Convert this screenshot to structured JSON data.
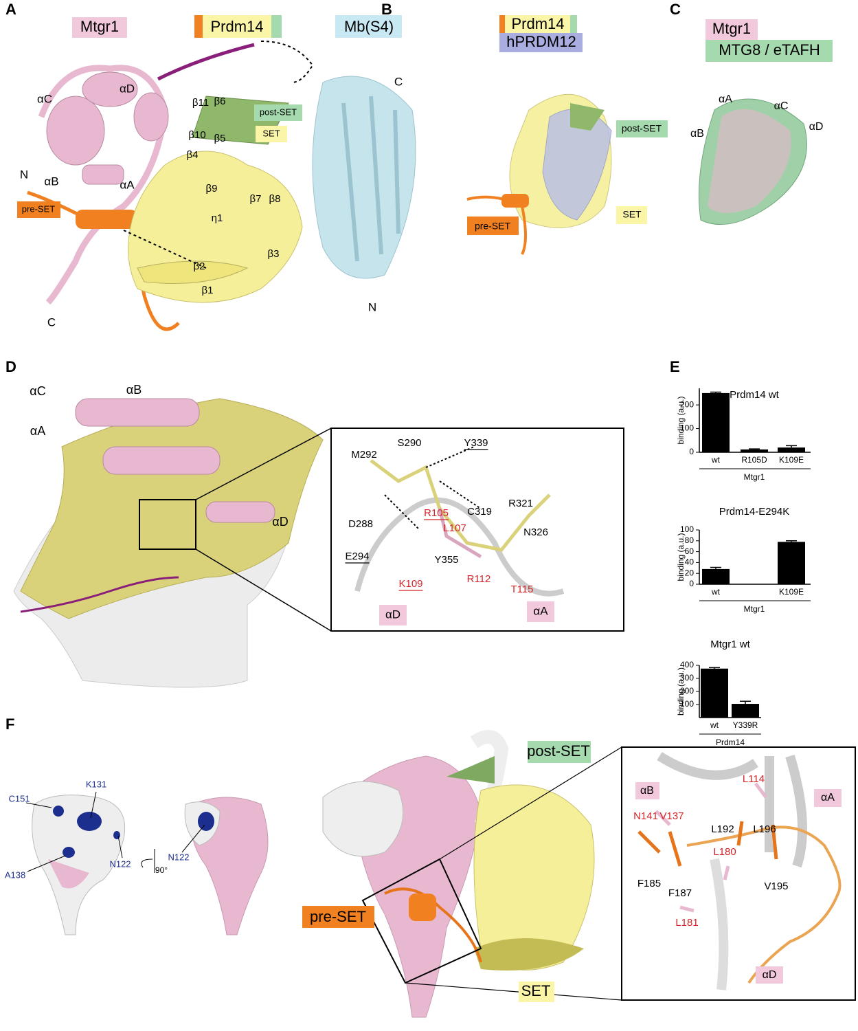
{
  "panel_a": {
    "label": "A",
    "mtgr1": "Mtgr1",
    "prdm14": "Prdm14",
    "mb": "Mb(S4)",
    "helices": [
      "αC",
      "αD",
      "αB",
      "αA"
    ],
    "mtgr1_n": "N",
    "mtgr1_c": "C",
    "pre_set": "pre-SET",
    "post_set": "post-SET",
    "set": "SET",
    "strands": [
      "β11",
      "β6",
      "β10",
      "β5",
      "β4",
      "β9",
      "β7",
      "β8",
      "η1",
      "β2",
      "β1",
      "β3"
    ],
    "mb_c": "C",
    "mb_n": "N"
  },
  "panel_b": {
    "label": "B",
    "prdm14": "Prdm14",
    "hprdm12": "hPRDM12",
    "post_set": "post-SET",
    "pre_set": "pre-SET",
    "set": "SET"
  },
  "panel_c": {
    "label": "C",
    "mtgr1": "Mtgr1",
    "mtg8": "MTG8 / eTAFH",
    "helices": [
      "αA",
      "αC",
      "αB",
      "αD"
    ]
  },
  "panel_d": {
    "label": "D",
    "helices": [
      "αC",
      "αB",
      "αA",
      "αD"
    ],
    "inset": {
      "residues": [
        "M292",
        "S290",
        "Y339",
        "D288",
        "R105",
        "C319",
        "R321",
        "L107",
        "E294",
        "K109",
        "Y355",
        "N326",
        "R112",
        "T115"
      ],
      "helix_d": "αD",
      "helix_a": "αA"
    }
  },
  "panel_e": {
    "label": "E"
  },
  "chart_data": [
    {
      "type": "bar",
      "title": "Prdm14 wt",
      "ylabel": "binding (a.u.)",
      "categories": [
        "wt",
        "R105D",
        "K109E"
      ],
      "values": [
        250,
        12,
        20
      ],
      "errors": [
        4,
        2,
        8
      ],
      "group_label": "Mtgr1",
      "ylim": [
        0,
        270
      ],
      "yticks": [
        0,
        100,
        200
      ],
      "color": "#000000"
    },
    {
      "type": "bar",
      "title": "Prdm14-E294K",
      "ylabel": "binding (a.u.)",
      "categories": [
        "wt",
        null,
        "K109E"
      ],
      "values": [
        28,
        null,
        78
      ],
      "errors": [
        3,
        null,
        2
      ],
      "group_label": "Mtgr1",
      "ylim": [
        0,
        100
      ],
      "yticks": [
        0,
        20,
        40,
        60,
        80,
        100
      ],
      "color": "#000000"
    },
    {
      "type": "bar",
      "title": "Mtgr1 wt",
      "ylabel": "binding (a.u.)",
      "categories": [
        "wt",
        "Y339R"
      ],
      "values": [
        375,
        105
      ],
      "errors": [
        8,
        20
      ],
      "group_label": "Prdm14",
      "ylim": [
        0,
        400
      ],
      "yticks": [
        100,
        200,
        300,
        400
      ],
      "color": "#000000"
    }
  ],
  "panel_f": {
    "label": "F",
    "residues_left": [
      "C151",
      "K131",
      "A138",
      "N122"
    ],
    "rotation": "90°",
    "residue_right": "N122",
    "post_set": "post-SET",
    "pre_set": "pre-SET",
    "set": "SET",
    "inset": {
      "helix_b": "αB",
      "helix_a": "αA",
      "helix_d": "αD",
      "residues": [
        "L114",
        "N141",
        "V137",
        "L192",
        "L196",
        "L180",
        "F185",
        "F187",
        "V195",
        "L181"
      ]
    }
  }
}
